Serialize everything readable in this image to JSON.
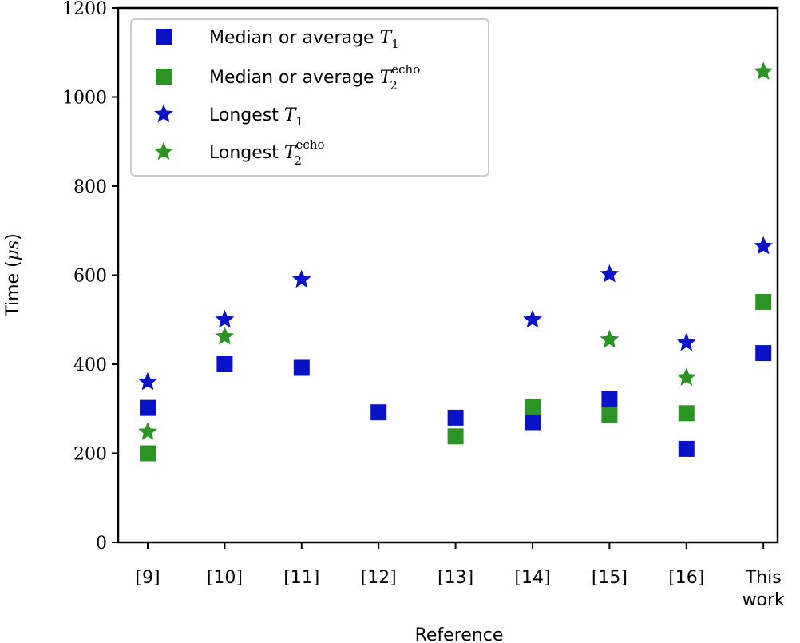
{
  "chart_data": {
    "type": "scatter",
    "xlabel": "Reference",
    "ylabel": "Time (μs)",
    "ylabel_parts": {
      "prefix": "Time (",
      "math": "μs",
      "suffix": ")"
    },
    "ylim": [
      0,
      1200
    ],
    "yticks": [
      0,
      200,
      400,
      600,
      800,
      1000,
      1200
    ],
    "categories": [
      "[9]",
      "[10]",
      "[11]",
      "[12]",
      "[13]",
      "[14]",
      "[15]",
      "[16]",
      "This work"
    ],
    "category_lines": [
      [
        "[9]"
      ],
      [
        "[10]"
      ],
      [
        "[11]"
      ],
      [
        "[12]"
      ],
      [
        "[13]"
      ],
      [
        "[14]"
      ],
      [
        "[15]"
      ],
      [
        "[16]"
      ],
      [
        "This",
        "work"
      ]
    ],
    "series": [
      {
        "label_parts": {
          "text": "Median or average ",
          "math": "T",
          "sub": "1",
          "sup": ""
        },
        "marker": "square",
        "color": "#0a12c8",
        "values": [
          302,
          400,
          392,
          292,
          280,
          270,
          322,
          210,
          425
        ]
      },
      {
        "label_parts": {
          "text": "Median or average ",
          "math": "T",
          "sub": "2",
          "sup": "echo"
        },
        "marker": "square",
        "color": "#2b9424",
        "values": [
          200,
          null,
          null,
          null,
          238,
          305,
          287,
          290,
          540
        ]
      },
      {
        "label_parts": {
          "text": "Longest ",
          "math": "T",
          "sub": "1",
          "sup": ""
        },
        "marker": "star",
        "color": "#0a12c8",
        "values": [
          360,
          500,
          590,
          null,
          null,
          500,
          602,
          448,
          665
        ]
      },
      {
        "label_parts": {
          "text": "Longest ",
          "math": "T",
          "sub": "2",
          "sup": "echo"
        },
        "marker": "star",
        "color": "#2b9424",
        "values": [
          248,
          462,
          null,
          null,
          null,
          null,
          455,
          370,
          1057
        ]
      }
    ],
    "legend_position": "top-left",
    "grid": false
  }
}
